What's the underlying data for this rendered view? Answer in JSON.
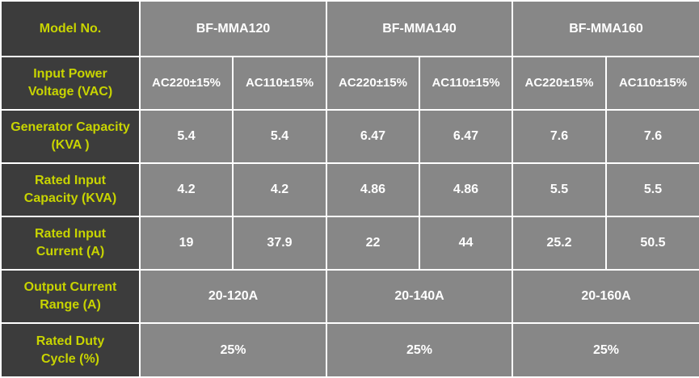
{
  "header": {
    "label": "Model No.",
    "models": [
      "BF-MMA120",
      "BF-MMA140",
      "BF-MMA160"
    ]
  },
  "rows": {
    "input_voltage": {
      "label": [
        "Input Power",
        "Voltage (VAC)"
      ],
      "values": [
        "AC220±15%",
        "AC110±15%",
        "AC220±15%",
        "AC110±15%",
        "AC220±15%",
        "AC110±15%"
      ]
    },
    "generator_capacity": {
      "label": [
        "Generator Capacity",
        "(KVA )"
      ],
      "values": [
        "5.4",
        "5.4",
        "6.47",
        "6.47",
        "7.6",
        "7.6"
      ]
    },
    "rated_input_capacity": {
      "label": [
        "Rated Input",
        "Capacity (KVA)"
      ],
      "values": [
        "4.2",
        "4.2",
        "4.86",
        "4.86",
        "5.5",
        "5.5"
      ]
    },
    "rated_input_current": {
      "label": [
        "Rated Input",
        "Current (A)"
      ],
      "values": [
        "19",
        "37.9",
        "22",
        "44",
        "25.2",
        "50.5"
      ]
    },
    "output_current_range": {
      "label": [
        "Output Current",
        "Range (A)"
      ],
      "values": [
        "20-120A",
        "20-140A",
        "20-160A"
      ]
    },
    "rated_duty_cycle": {
      "label": [
        "Rated Duty",
        "Cycle (%)"
      ],
      "values": [
        "25%",
        "25%",
        "25%"
      ]
    }
  },
  "colors": {
    "label_bg": "#3c3c3c",
    "label_text": "#c8d400",
    "value_bg": "#878787",
    "value_text": "#ffffff",
    "grid": "#ffffff"
  }
}
